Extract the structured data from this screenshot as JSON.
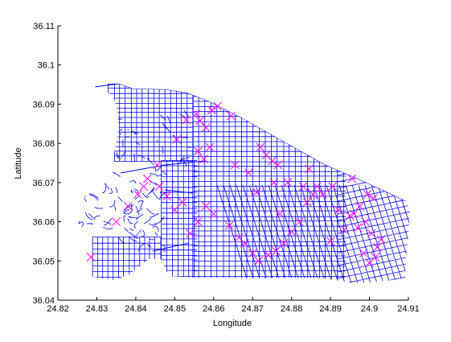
{
  "chart_data": {
    "type": "scatter",
    "title": "",
    "xlabel": "Longitude",
    "ylabel": "Latitude",
    "xlim": [
      24.82,
      24.91
    ],
    "ylim": [
      36.04,
      36.11
    ],
    "xticks": [
      "24.82",
      "24.83",
      "24.84",
      "24.85",
      "24.86",
      "24.87",
      "24.88",
      "24.89",
      "24.9",
      "24.91"
    ],
    "yticks": [
      "36.04",
      "36.05",
      "36.06",
      "36.07",
      "36.08",
      "36.09",
      "36.1",
      "36.11"
    ],
    "grid": false,
    "legend": "none",
    "colors": {
      "road_network": "#0000ff",
      "markers": "#ff00ff",
      "axes": "#000000"
    },
    "series": [
      {
        "marker": "x",
        "x": [
          24.8455,
          24.8505,
          24.853,
          24.8555,
          24.8565,
          24.858,
          24.8595,
          24.861,
          24.8645,
          24.856,
          24.8575,
          24.859,
          24.8655,
          24.869,
          24.872,
          24.8735,
          24.875,
          24.8765,
          24.871,
          24.8755,
          24.8845,
          24.8865,
          24.888,
          24.8905,
          24.8955,
          24.8975,
          24.899,
          24.9005,
          24.902,
          24.8985,
          24.9,
          24.9015,
          24.903,
          24.896,
          24.897,
          24.8995,
          24.901,
          24.884,
          24.882,
          24.88,
          24.878,
          24.876,
          24.874,
          24.8715,
          24.87,
          24.868,
          24.8665,
          24.864,
          24.86,
          24.858,
          24.856,
          24.854,
          24.852,
          24.85,
          24.848,
          24.846,
          24.843,
          24.842,
          24.8405,
          24.838,
          24.835,
          24.8285,
          24.89,
          24.8935,
          24.895,
          24.892,
          24.8855,
          24.883,
          24.879,
          24.877
        ],
        "y": [
          36.0745,
          36.081,
          36.086,
          36.0875,
          36.0858,
          36.084,
          36.0885,
          36.0895,
          36.087,
          36.078,
          36.076,
          36.079,
          36.0745,
          36.0725,
          36.079,
          36.077,
          36.0755,
          36.0745,
          36.0675,
          36.07,
          36.0735,
          36.069,
          36.067,
          36.069,
          36.071,
          36.064,
          36.06,
          36.057,
          36.0535,
          36.052,
          36.0495,
          36.051,
          36.0555,
          36.062,
          36.0585,
          36.067,
          36.066,
          36.065,
          36.06,
          36.0575,
          36.0545,
          36.0525,
          36.0515,
          36.05,
          36.052,
          36.0545,
          36.056,
          36.059,
          36.062,
          36.064,
          36.06,
          36.057,
          36.065,
          36.063,
          36.0665,
          36.069,
          36.071,
          36.069,
          36.067,
          36.064,
          36.06,
          36.051,
          36.055,
          36.058,
          36.0615,
          36.063,
          36.067,
          36.069,
          36.07,
          36.062
        ]
      }
    ]
  }
}
